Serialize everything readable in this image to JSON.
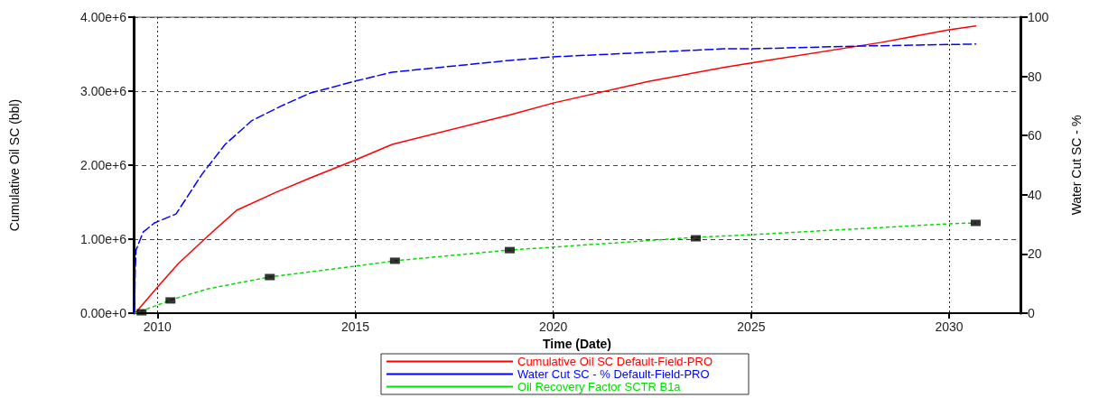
{
  "chart_data": {
    "type": "line",
    "xlabel": "Time (Date)",
    "ylabel": "Cumulative Oil SC (bbl)",
    "y2label": "Water Cut SC - %",
    "xlim": [
      2009.4,
      2031.8
    ],
    "xticks": [
      2010,
      2015,
      2020,
      2025,
      2030
    ],
    "ylim": [
      0,
      4000000
    ],
    "yticks": [
      {
        "value": 0,
        "label": "0.00e+0"
      },
      {
        "value": 1000000,
        "label": "1.00e+6"
      },
      {
        "value": 2000000,
        "label": "2.00e+6"
      },
      {
        "value": 3000000,
        "label": "3.00e+6"
      },
      {
        "value": 4000000,
        "label": "4.00e+6"
      }
    ],
    "y2lim": [
      0,
      100
    ],
    "y2ticks": [
      0,
      20,
      40,
      60,
      80,
      100
    ],
    "grid": true,
    "legend": "bottom",
    "marker": "none",
    "series": [
      {
        "name": "Cumulative Oil SC Default-Field-PRO",
        "color": "#ff0000",
        "line_style": "solid",
        "x": [
          2009.44,
          2010,
          2010.53,
          2011.27,
          2012,
          2012.98,
          2013.87,
          2015,
          2015.93,
          2018.91,
          2020,
          2022.4,
          2024.3,
          2025,
          2028.3,
          2030,
          2030.67
        ],
        "values": [
          0,
          350000,
          670000,
          1040000,
          1390000,
          1630000,
          1830000,
          2070000,
          2280000,
          2680000,
          2840000,
          3130000,
          3320000,
          3380000,
          3660000,
          3830000,
          3880000
        ]
      },
      {
        "name": "Water Cut SC - % Default-Field-PRO",
        "color": "#0000ff",
        "line_style": "dashed",
        "axis": "y2",
        "x": [
          2009.42,
          2009.44,
          2009.46,
          2009.64,
          2009.93,
          2010.47,
          2011.13,
          2011.71,
          2012.38,
          2013.13,
          2013.87,
          2015,
          2015.93,
          2018.91,
          2020,
          2022.4,
          2024.3,
          2025,
          2027.6,
          2030.67
        ],
        "values": [
          0,
          14.3,
          21.3,
          27.4,
          30.5,
          33.5,
          47,
          57,
          65,
          70,
          74.4,
          78.4,
          81.4,
          85.4,
          86.6,
          88.1,
          89.3,
          89.3,
          90.2,
          90.9
        ]
      },
      {
        "name": "Oil Recovery Factor SCTR B1a",
        "color": "#00dd00",
        "line_style": "dotted",
        "axis": "y2",
        "x": [
          2009.44,
          2010,
          2010.36,
          2011.27,
          2012.82,
          2015,
          2016,
          2018.87,
          2020,
          2023.58,
          2025,
          2027,
          2030,
          2030.67
        ],
        "values": [
          0,
          2.7,
          4.6,
          8.2,
          12.2,
          15.9,
          17.7,
          21.3,
          22.3,
          25.6,
          26.5,
          28,
          30.2,
          30.5
        ]
      },
      {
        "type": "scatter",
        "marker": "square",
        "color": "#000000",
        "axis": "y2",
        "x": [
          2009.6,
          2010.33,
          2012.84,
          2016,
          2018.9,
          2023.6,
          2030.67
        ],
        "values": [
          0.3,
          4.3,
          12.2,
          17.7,
          21.3,
          25.3,
          30.5
        ]
      }
    ]
  }
}
